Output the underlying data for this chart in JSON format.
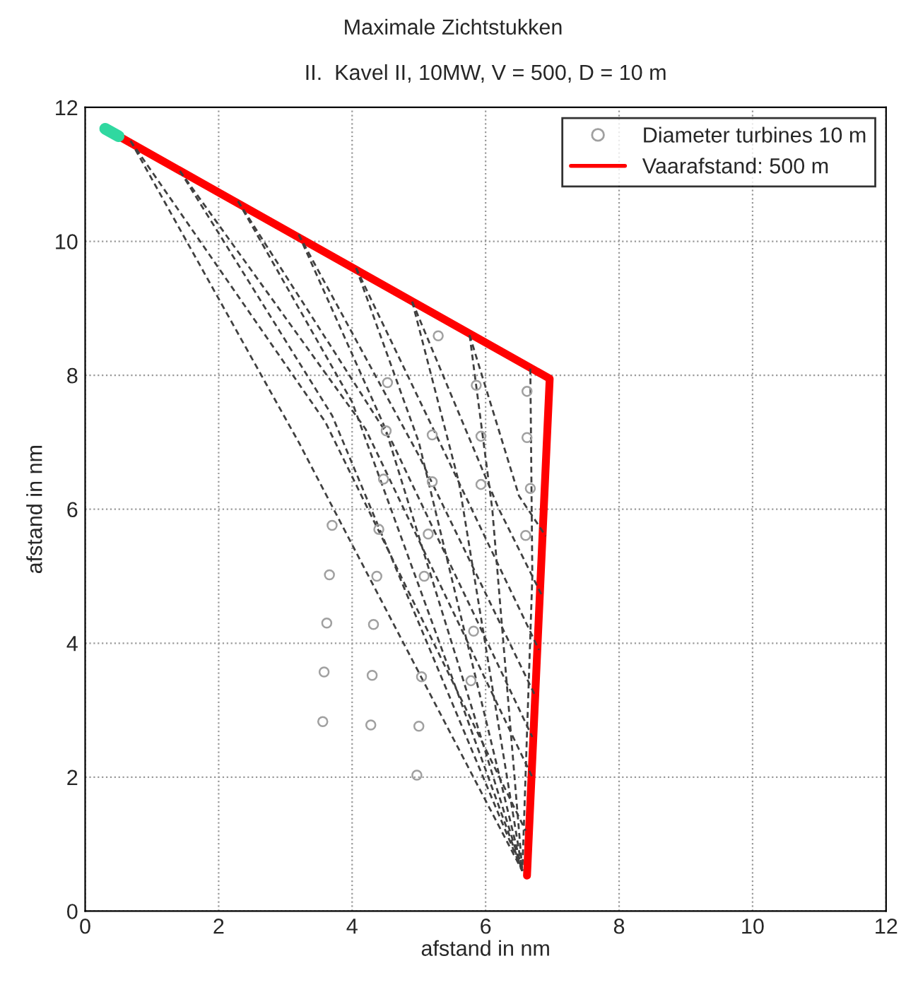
{
  "chart_data": {
    "type": "line",
    "title": "Maximale Zichtstukken",
    "subtitle": "II.  Kavel II, 10MW, V = 500, D = 10 m",
    "xlabel": "afstand in nm",
    "ylabel": "afstand in nm",
    "xlim": [
      0,
      12
    ],
    "ylim": [
      0,
      12
    ],
    "xticks": [
      0,
      2,
      4,
      6,
      8,
      10,
      12
    ],
    "yticks": [
      0,
      2,
      4,
      6,
      8,
      10,
      12
    ],
    "grid": true,
    "legend": "top right",
    "series": [
      {
        "type": "line",
        "x": [
          0.68,
          3.2,
          6.55
        ],
        "values": [
          11.5,
          7.0,
          0.6
        ],
        "color": "#404040",
        "line_style": "dashed"
      },
      {
        "type": "line",
        "x": [
          0.68,
          3.6,
          6.6
        ],
        "values": [
          11.5,
          7.3,
          1.2
        ],
        "color": "#404040",
        "line_style": "dashed"
      },
      {
        "type": "line",
        "x": [
          1.42,
          3.7,
          6.55
        ],
        "values": [
          11.05,
          7.4,
          0.6
        ],
        "color": "#404040",
        "line_style": "dashed"
      },
      {
        "type": "line",
        "x": [
          1.42,
          4.2,
          6.7
        ],
        "values": [
          11.05,
          7.2,
          2.0
        ],
        "color": "#404040",
        "line_style": "dashed"
      },
      {
        "type": "line",
        "x": [
          2.29,
          4.0,
          6.55
        ],
        "values": [
          10.6,
          7.6,
          0.6
        ],
        "color": "#404040",
        "line_style": "dashed"
      },
      {
        "type": "line",
        "x": [
          2.29,
          4.6,
          6.7
        ],
        "values": [
          10.6,
          7.0,
          2.6
        ],
        "color": "#404040",
        "line_style": "dashed"
      },
      {
        "type": "line",
        "x": [
          3.2,
          4.5,
          6.55
        ],
        "values": [
          10.1,
          7.2,
          0.6
        ],
        "color": "#404040",
        "line_style": "dashed"
      },
      {
        "type": "line",
        "x": [
          3.2,
          5.0,
          6.75
        ],
        "values": [
          10.1,
          6.8,
          3.2
        ],
        "color": "#404040",
        "line_style": "dashed"
      },
      {
        "type": "line",
        "x": [
          4.06,
          5.0,
          6.55
        ],
        "values": [
          9.6,
          7.0,
          0.6
        ],
        "color": "#404040",
        "line_style": "dashed"
      },
      {
        "type": "line",
        "x": [
          4.06,
          5.6,
          6.8
        ],
        "values": [
          9.6,
          6.4,
          3.9
        ],
        "color": "#404040",
        "line_style": "dashed"
      },
      {
        "type": "line",
        "x": [
          4.9,
          5.6,
          6.55
        ],
        "values": [
          9.1,
          6.4,
          0.6
        ],
        "color": "#404040",
        "line_style": "dashed"
      },
      {
        "type": "line",
        "x": [
          4.9,
          6.2,
          6.85
        ],
        "values": [
          9.1,
          6.0,
          4.7
        ],
        "color": "#404040",
        "line_style": "dashed"
      },
      {
        "type": "line",
        "x": [
          5.76,
          6.1,
          6.55
        ],
        "values": [
          8.6,
          6.0,
          0.6
        ],
        "color": "#404040",
        "line_style": "dashed"
      },
      {
        "type": "line",
        "x": [
          5.76,
          6.5,
          6.9
        ],
        "values": [
          8.6,
          6.2,
          5.6
        ],
        "color": "#404040",
        "line_style": "dashed"
      },
      {
        "type": "line",
        "x": [
          6.67,
          6.7,
          6.55
        ],
        "values": [
          8.1,
          5.0,
          0.6
        ],
        "color": "#404040",
        "line_style": "dashed"
      },
      {
        "type": "scatter",
        "name": "Diameter turbines 10 m",
        "color": "#a0a0a0",
        "marker": "circle",
        "x": [
          3.7,
          3.66,
          3.62,
          3.58,
          3.56,
          4.37,
          4.32,
          4.3,
          4.28,
          5.08,
          5.04,
          5.0,
          4.97,
          5.29,
          4.53,
          5.86,
          6.62,
          4.51,
          5.2,
          5.93,
          6.62,
          4.47,
          5.2,
          5.93,
          6.67,
          4.4,
          5.14,
          6.6,
          5.82,
          5.78
        ],
        "values": [
          5.76,
          5.02,
          4.3,
          3.57,
          2.83,
          5.0,
          4.28,
          3.52,
          2.78,
          5.0,
          3.5,
          2.76,
          2.03,
          8.59,
          7.89,
          7.85,
          7.76,
          7.17,
          7.11,
          7.09,
          7.07,
          6.45,
          6.41,
          6.37,
          6.31,
          5.7,
          5.63,
          5.61,
          4.18,
          3.44
        ]
      },
      {
        "name": "Vaarafstand: 500 m",
        "color": "#ff0000",
        "x": [
          0.5,
          6.96,
          6.62
        ],
        "values": [
          11.57,
          7.95,
          0.53
        ]
      },
      {
        "color": "#30d8a0",
        "x": [
          0.3,
          0.5
        ],
        "values": [
          11.68,
          11.57
        ]
      }
    ]
  }
}
